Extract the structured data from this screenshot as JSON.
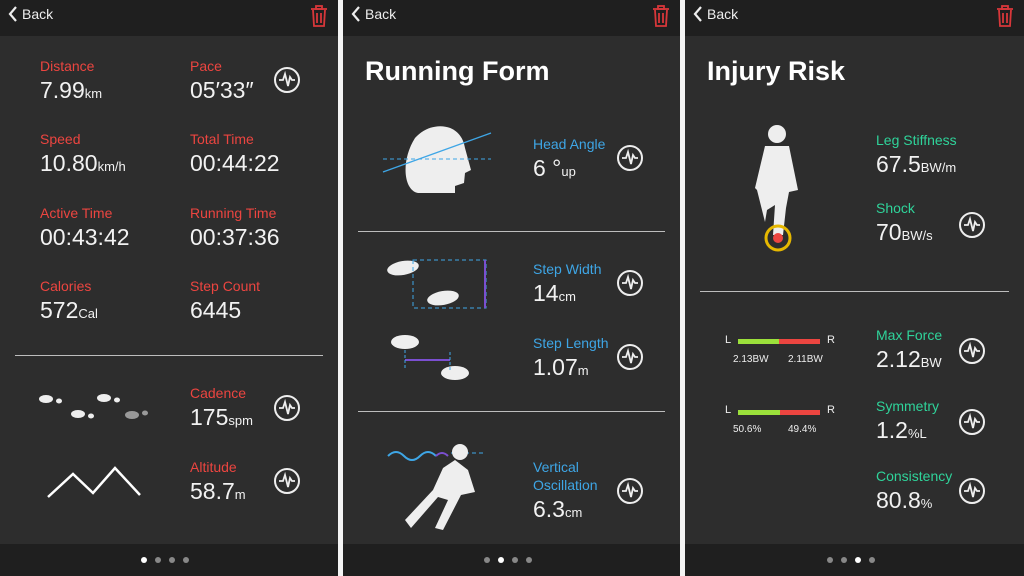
{
  "screens": [
    {
      "back": "Back",
      "metrics": [
        {
          "label": "Distance",
          "value": "7.99",
          "unit": "km"
        },
        {
          "label": "Pace",
          "value": "05′33″"
        },
        {
          "label": "Speed",
          "value": "10.80",
          "unit": "km/h"
        },
        {
          "label": "Total Time",
          "value": "00:44:22"
        },
        {
          "label": "Active Time",
          "value": "00:43:42"
        },
        {
          "label": "Running Time",
          "value": "00:37:36"
        },
        {
          "label": "Calories",
          "value": "572",
          "unit": "Cal"
        },
        {
          "label": "Step Count",
          "value": "6445"
        },
        {
          "label": "Cadence",
          "value": "175",
          "unit": "spm"
        },
        {
          "label": "Altitude",
          "value": "58.7",
          "unit": "m"
        }
      ]
    },
    {
      "back": "Back",
      "title": "Running Form",
      "metrics": [
        {
          "label": "Head Angle",
          "value": "6 °",
          "unit": "up"
        },
        {
          "label": "Step Width",
          "value": "14",
          "unit": "cm"
        },
        {
          "label": "Step Length",
          "value": "1.07",
          "unit": "m"
        },
        {
          "label": "Vertical Oscillation",
          "value": "6.3",
          "unit": "cm"
        }
      ]
    },
    {
      "back": "Back",
      "title": "Injury Risk",
      "metrics": [
        {
          "label": "Leg Stiffness",
          "value": "67.5",
          "unit": "BW/m"
        },
        {
          "label": "Shock",
          "value": "70",
          "unit": "BW/s"
        },
        {
          "label": "Max Force",
          "value": "2.12",
          "unit": "BW"
        },
        {
          "label": "Symmetry",
          "value": "1.2",
          "unit": "%L"
        },
        {
          "label": "Consistency",
          "value": "80.8",
          "unit": "%"
        }
      ],
      "balance": [
        {
          "left": "L",
          "right": "R",
          "left_value": "2.13BW",
          "right_value": "2.11BW"
        },
        {
          "left": "L",
          "right": "R",
          "left_value": "50.6%",
          "right_value": "49.4%"
        }
      ]
    }
  ]
}
